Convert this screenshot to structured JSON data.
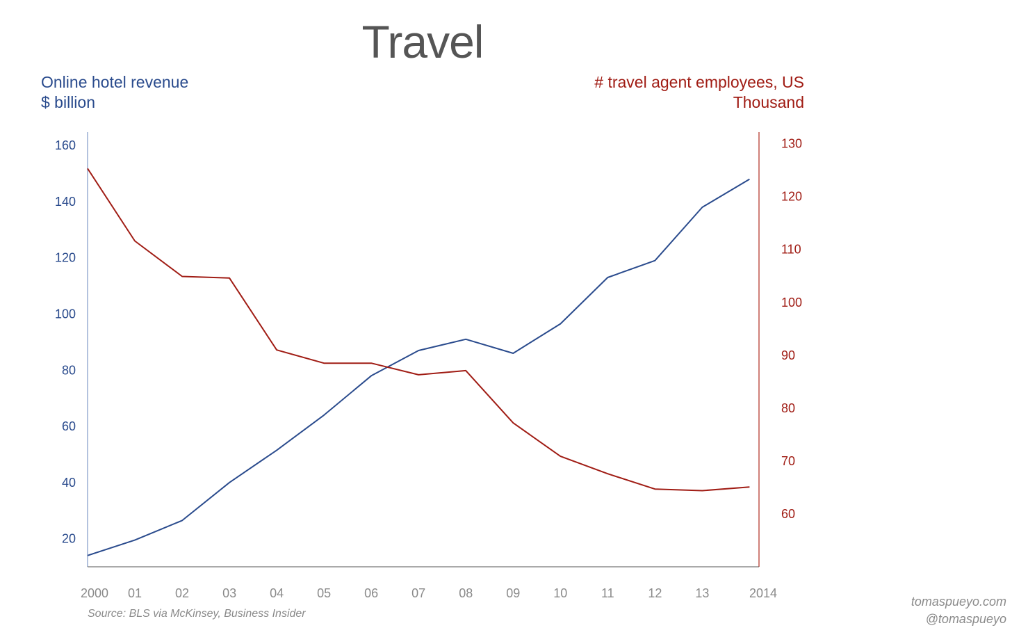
{
  "chart_data": {
    "type": "line",
    "title": "Travel",
    "left_axis": {
      "label_line1": "Online hotel revenue",
      "label_line2": "$ billion",
      "ticks": [
        20,
        40,
        60,
        80,
        100,
        120,
        140,
        160
      ],
      "range": [
        10,
        163
      ],
      "color": "#2a4b8d"
    },
    "right_axis": {
      "label_line1": "# travel agent employees, US",
      "label_line2": "Thousand",
      "ticks": [
        60,
        70,
        80,
        90,
        100,
        110,
        120,
        130
      ],
      "range": [
        50,
        131
      ],
      "color": "#a01c14"
    },
    "x_tick_labels": [
      "2000",
      "01",
      "02",
      "03",
      "04",
      "05",
      "06",
      "07",
      "08",
      "09",
      "10",
      "11",
      "12",
      "13",
      "2014"
    ],
    "series": [
      {
        "axis": "left",
        "color": "#2a4b8d",
        "x": [
          2000,
          2001,
          2002,
          2003,
          2004,
          2005,
          2006,
          2007,
          2008,
          2009,
          2010,
          2011,
          2012,
          2013,
          2014
        ],
        "values": [
          14,
          19.5,
          26.5,
          40,
          51.5,
          64,
          78,
          87,
          91,
          86,
          96.5,
          113,
          119,
          138,
          148
        ]
      },
      {
        "axis": "right",
        "color": "#a01c14",
        "x": [
          2000,
          2001,
          2002,
          2003,
          2004,
          2005,
          2006,
          2007,
          2008,
          2009,
          2010,
          2011,
          2012,
          2013,
          2014
        ],
        "values": [
          125.3,
          111.6,
          104.9,
          104.6,
          91,
          88.5,
          88.5,
          86.3,
          87.1,
          77.2,
          70.9,
          67.6,
          64.7,
          64.4,
          65.1
        ]
      }
    ],
    "grid": false,
    "legend": "none"
  },
  "footer": {
    "source": "Source: BLS via McKinsey, Business Insider",
    "credit_line1": "tomaspueyo.com",
    "credit_line2": "@tomaspueyo"
  }
}
